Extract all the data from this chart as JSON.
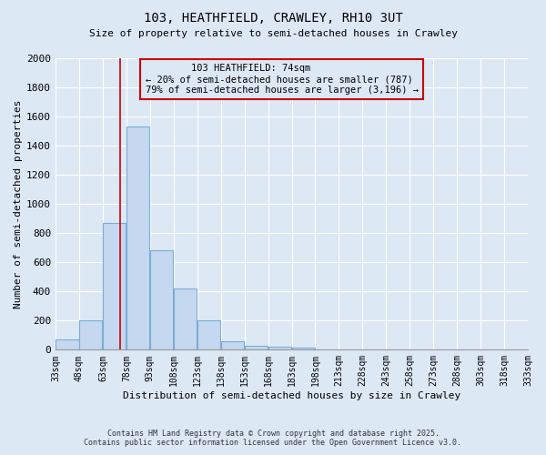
{
  "title1": "103, HEATHFIELD, CRAWLEY, RH10 3UT",
  "title2": "Size of property relative to semi-detached houses in Crawley",
  "xlabel": "Distribution of semi-detached houses by size in Crawley",
  "ylabel": "Number of semi-detached properties",
  "bar_edges": [
    33,
    48,
    63,
    78,
    93,
    108,
    123,
    138,
    153,
    168,
    183,
    198,
    213,
    228,
    243,
    258,
    273,
    288,
    303,
    318,
    333
  ],
  "bar_heights": [
    70,
    200,
    870,
    1530,
    680,
    420,
    200,
    60,
    25,
    20,
    15,
    5,
    3,
    2,
    1,
    1,
    0,
    0,
    0,
    0
  ],
  "bar_color": "#c5d8f0",
  "bar_edge_color": "#7aadd4",
  "property_size": 74,
  "property_label": "103 HEATHFIELD: 74sqm",
  "pct_smaller": 20,
  "pct_larger": 79,
  "n_smaller": 787,
  "n_larger": 3196,
  "annotation_box_color": "#cc0000",
  "vline_color": "#cc0000",
  "ylim": [
    0,
    2000
  ],
  "yticks": [
    0,
    200,
    400,
    600,
    800,
    1000,
    1200,
    1400,
    1600,
    1800,
    2000
  ],
  "bg_color": "#dde8f5",
  "grid_color": "#ffffff",
  "footer_line1": "Contains HM Land Registry data © Crown copyright and database right 2025.",
  "footer_line2": "Contains public sector information licensed under the Open Government Licence v3.0."
}
